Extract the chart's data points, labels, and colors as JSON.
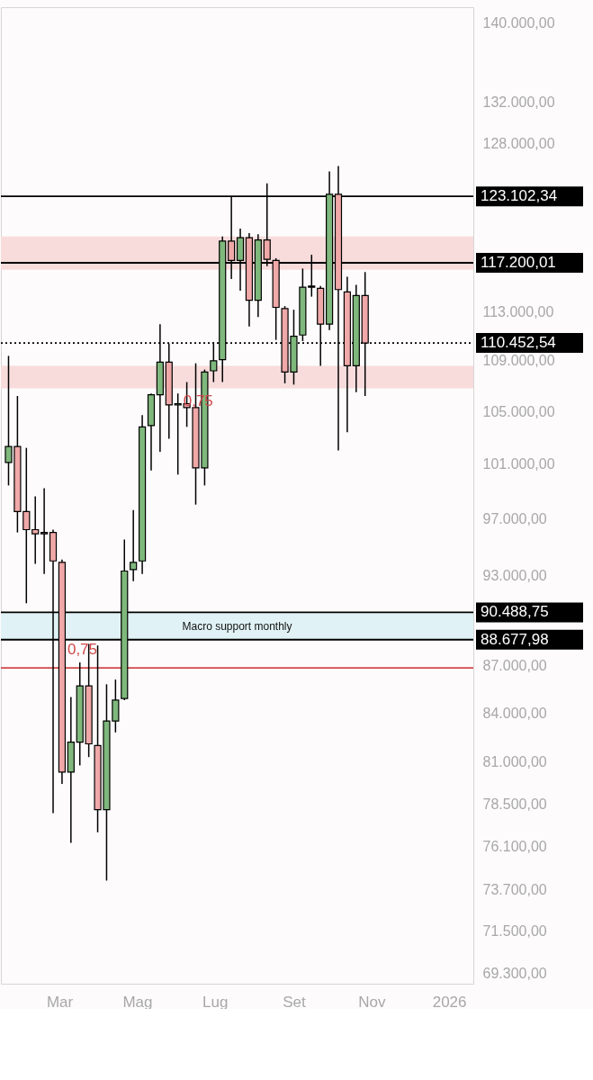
{
  "chart_data": {
    "type": "candlestick",
    "x": [
      "2025-01-20",
      "2025-01-27",
      "2025-02-03",
      "2025-02-10",
      "2025-02-17",
      "2025-02-24",
      "2025-03-03",
      "2025-03-10",
      "2025-03-17",
      "2025-03-24",
      "2025-03-31",
      "2025-04-07",
      "2025-04-14",
      "2025-04-21",
      "2025-04-28",
      "2025-05-05",
      "2025-05-12",
      "2025-05-19",
      "2025-05-26",
      "2025-06-02",
      "2025-06-09",
      "2025-06-16",
      "2025-06-23",
      "2025-06-30",
      "2025-07-07",
      "2025-07-14",
      "2025-07-21",
      "2025-07-28",
      "2025-08-04",
      "2025-08-11",
      "2025-08-18",
      "2025-08-25",
      "2025-09-01",
      "2025-09-08",
      "2025-09-15",
      "2025-09-22",
      "2025-09-29",
      "2025-10-06",
      "2025-10-13",
      "2025-10-20",
      "2025-10-27"
    ],
    "ohlc": [
      [
        101100,
        109400,
        99400,
        102300
      ],
      [
        102300,
        106200,
        96000,
        97500
      ],
      [
        97500,
        102200,
        91100,
        96200
      ],
      [
        96200,
        98600,
        93800,
        95900
      ],
      [
        96000,
        99200,
        93100,
        95900
      ],
      [
        96000,
        96200,
        78000,
        94000
      ],
      [
        93900,
        94100,
        79700,
        80400
      ],
      [
        80400,
        85000,
        76300,
        82200
      ],
      [
        82200,
        87200,
        80800,
        85700
      ],
      [
        85700,
        88400,
        81300,
        82100
      ],
      [
        82000,
        88300,
        76900,
        78200
      ],
      [
        78200,
        85800,
        74200,
        83500
      ],
      [
        83500,
        86100,
        82800,
        84800
      ],
      [
        84900,
        95500,
        84800,
        93300
      ],
      [
        93400,
        97600,
        92600,
        93900
      ],
      [
        94000,
        104700,
        93100,
        103800
      ],
      [
        103900,
        106400,
        100500,
        106300
      ],
      [
        106300,
        112000,
        101900,
        108900
      ],
      [
        108900,
        110400,
        102900,
        105500
      ],
      [
        105500,
        106400,
        100200,
        105600
      ],
      [
        105600,
        107300,
        103800,
        105300
      ],
      [
        105300,
        108800,
        98000,
        100700
      ],
      [
        100700,
        108300,
        99400,
        108100
      ],
      [
        108200,
        110500,
        107300,
        109000
      ],
      [
        109100,
        119500,
        107300,
        119100
      ],
      [
        119100,
        123100,
        115800,
        117400
      ],
      [
        117400,
        120200,
        114800,
        119400
      ],
      [
        119400,
        119800,
        111800,
        114000
      ],
      [
        114000,
        119700,
        112600,
        119200
      ],
      [
        119200,
        124300,
        116900,
        117500
      ],
      [
        117400,
        117600,
        110700,
        113400
      ],
      [
        113300,
        113500,
        107200,
        108100
      ],
      [
        108100,
        113200,
        107100,
        111000
      ],
      [
        111100,
        116700,
        110600,
        115100
      ],
      [
        115100,
        117900,
        114300,
        115200
      ],
      [
        115000,
        115200,
        108600,
        112000
      ],
      [
        112000,
        125400,
        111500,
        123300
      ],
      [
        123300,
        125900,
        102000,
        114900
      ],
      [
        114700,
        116000,
        103400,
        108600
      ],
      [
        108600,
        115300,
        106500,
        114400
      ],
      [
        114400,
        116400,
        106200,
        110452.54
      ]
    ],
    "colors": [
      "#7fb87c",
      "#f0a8a8",
      "#f0a8a8",
      "#f0a8a8",
      "#f0a8a8",
      "#f0a8a8",
      "#f0a8a8",
      "#7fb87c",
      "#7fb87c",
      "#f0a8a8",
      "#f0a8a8",
      "#7fb87c",
      "#7fb87c",
      "#7fb87c",
      "#7fb87c",
      "#7fb87c",
      "#7fb87c",
      "#7fb87c",
      "#f0a8a8",
      "#7fb87c",
      "#f0a8a8",
      "#f0a8a8",
      "#7fb87c",
      "#7fb87c",
      "#7fb87c",
      "#f0a8a8",
      "#7fb87c",
      "#f0a8a8",
      "#7fb87c",
      "#f0a8a8",
      "#f0a8a8",
      "#f0a8a8",
      "#7fb87c",
      "#7fb87c",
      "#7fb87c",
      "#f0a8a8",
      "#7fb87c",
      "#f0a8a8",
      "#f0a8a8",
      "#7fb87c",
      "#f0a8a8"
    ],
    "log": true,
    "xlim": [
      "2025-01-14",
      "2026-01-20"
    ],
    "xticks": [
      {
        "value": "2025-03-01",
        "label": "Mar"
      },
      {
        "value": "2025-05-01",
        "label": "Mag"
      },
      {
        "value": "2025-07-01",
        "label": "Lug"
      },
      {
        "value": "2025-09-01",
        "label": "Set"
      },
      {
        "value": "2025-11-01",
        "label": "Nov"
      },
      {
        "value": "2026-01-01",
        "label": "2026"
      }
    ],
    "ylim": [
      68750,
      141600
    ],
    "yticks": [
      {
        "value": 140000,
        "label": "140.000,00"
      },
      {
        "value": 132000,
        "label": "132.000,00"
      },
      {
        "value": 128000,
        "label": "128.000,00"
      },
      {
        "value": 113000,
        "label": "113.000,00"
      },
      {
        "value": 109000,
        "label": "109.000,00"
      },
      {
        "value": 105000,
        "label": "105.000,00"
      },
      {
        "value": 101000,
        "label": "101.000,00"
      },
      {
        "value": 97000,
        "label": "97.000,00"
      },
      {
        "value": 93000,
        "label": "93.000,00"
      },
      {
        "value": 87000,
        "label": "87.000,00"
      },
      {
        "value": 84000,
        "label": "84.000,00"
      },
      {
        "value": 81000,
        "label": "81.000,00"
      },
      {
        "value": 78500,
        "label": "78.500,00"
      },
      {
        "value": 76100,
        "label": "76.100,00"
      },
      {
        "value": 73700,
        "label": "73.700,00"
      },
      {
        "value": 71500,
        "label": "71.500,00"
      },
      {
        "value": 69300,
        "label": "69.300,00"
      }
    ],
    "ref_lines": [
      {
        "axis": "y",
        "value": 123102.34,
        "label": "123.102,34",
        "color": "#000000",
        "line_style": "solid"
      },
      {
        "axis": "y",
        "value": 117200.01,
        "label": "117.200,01",
        "color": "#000000",
        "line_style": "solid"
      },
      {
        "axis": "y",
        "value": 110452.54,
        "label": "110.452,54",
        "color": "#000000",
        "line_style": "dotted"
      },
      {
        "axis": "y",
        "value": 90488.75,
        "label": "90.488,75",
        "color": "#000000",
        "line_style": "solid"
      },
      {
        "axis": "y",
        "value": 88677.98,
        "label": "88.677,98",
        "color": "#000000",
        "line_style": "solid"
      },
      {
        "axis": "y",
        "value": 86850,
        "label": null,
        "color": "#d0484a",
        "line_style": "solid"
      }
    ],
    "bands": [
      {
        "axis": "y",
        "from": 116600,
        "to": 119500,
        "label": null,
        "color": "#f8dcdc"
      },
      {
        "axis": "y",
        "from": 106800,
        "to": 108600,
        "label": null,
        "color": "#f8dcdc"
      },
      {
        "axis": "y",
        "from": 88677.98,
        "to": 90488.75,
        "label": "Macro support monthly",
        "color": "#e0f2f5"
      }
    ],
    "annotations": [
      {
        "text": "0,75",
        "x": "2025-03-03",
        "y": 87800
      },
      {
        "text": "0,75",
        "x": "2025-06-02",
        "y": 105500
      }
    ]
  }
}
